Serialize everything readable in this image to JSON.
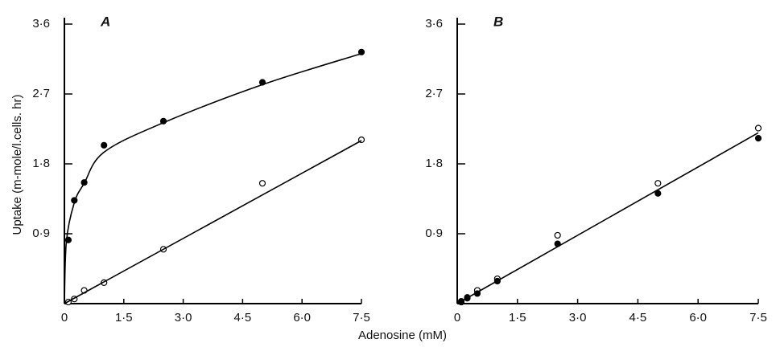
{
  "chart_data": [
    {
      "type": "scatter",
      "title": "A",
      "ylabel": "Uptake (m-mole/l.cells. hr)",
      "xlabel": "Adenosine (mM)",
      "xlim": [
        0,
        7.5
      ],
      "ylim": [
        0,
        3.6
      ],
      "xticks": [
        0,
        {
          "value": 1.5,
          "label": "1·5"
        },
        {
          "value": 3.0,
          "label": "3·0"
        },
        {
          "value": 4.5,
          "label": "4·5"
        },
        {
          "value": 6.0,
          "label": "6·0"
        },
        {
          "value": 7.5,
          "label": "7·5"
        }
      ],
      "yticks": [
        {
          "value": 0.9,
          "label": "0·9"
        },
        {
          "value": 1.8,
          "label": "1·8"
        },
        {
          "value": 2.7,
          "label": "2·7"
        },
        {
          "value": 3.6,
          "label": "3·6"
        }
      ],
      "color": "#000000",
      "series": [
        {
          "marker": "filled",
          "x": [
            0.1,
            0.25,
            0.5,
            1.0,
            2.5,
            5.0,
            7.5
          ],
          "values": [
            0.82,
            1.33,
            1.56,
            2.04,
            2.35,
            2.85,
            3.24
          ]
        },
        {
          "marker": "open",
          "x": [
            0.1,
            0.25,
            0.5,
            1.0,
            2.5,
            5.0,
            7.5
          ],
          "values": [
            0.02,
            0.06,
            0.17,
            0.27,
            0.7,
            1.55,
            2.11
          ]
        },
        {
          "marker": "none",
          "smooth": true,
          "x": [
            0,
            0.05,
            0.25,
            0.5,
            1.0,
            2.5,
            5.0,
            7.5
          ],
          "values": [
            0,
            0.8,
            1.3,
            1.55,
            1.95,
            2.33,
            2.82,
            3.22
          ]
        },
        {
          "marker": "none",
          "x": [
            0,
            7.5
          ],
          "values": [
            0,
            2.1
          ]
        }
      ]
    },
    {
      "type": "scatter",
      "title": "B",
      "xlim": [
        0,
        7.5
      ],
      "ylim": [
        0,
        3.6
      ],
      "xticks": [
        0,
        {
          "value": 1.5,
          "label": "1·5"
        },
        {
          "value": 3.0,
          "label": "3·0"
        },
        {
          "value": 4.5,
          "label": "4·5"
        },
        {
          "value": 6.0,
          "label": "6·0"
        },
        {
          "value": 7.5,
          "label": "7·5"
        }
      ],
      "yticks": [
        {
          "value": 0.9,
          "label": "0·9"
        },
        {
          "value": 1.8,
          "label": "1·8"
        },
        {
          "value": 2.7,
          "label": "2·7"
        },
        {
          "value": 3.6,
          "label": "3·6"
        }
      ],
      "color": "#000000",
      "series": [
        {
          "marker": "open",
          "x": [
            0.1,
            0.25,
            0.5,
            1.0,
            2.5,
            5.0,
            7.5
          ],
          "values": [
            0.03,
            0.08,
            0.17,
            0.32,
            0.88,
            1.55,
            2.26
          ]
        },
        {
          "marker": "filled",
          "x": [
            0.1,
            0.25,
            0.5,
            1.0,
            2.5,
            5.0,
            7.5
          ],
          "values": [
            0.02,
            0.07,
            0.13,
            0.29,
            0.77,
            1.42,
            2.13
          ]
        },
        {
          "marker": "none",
          "x": [
            0,
            7.5
          ],
          "values": [
            0,
            2.2
          ]
        }
      ]
    }
  ]
}
